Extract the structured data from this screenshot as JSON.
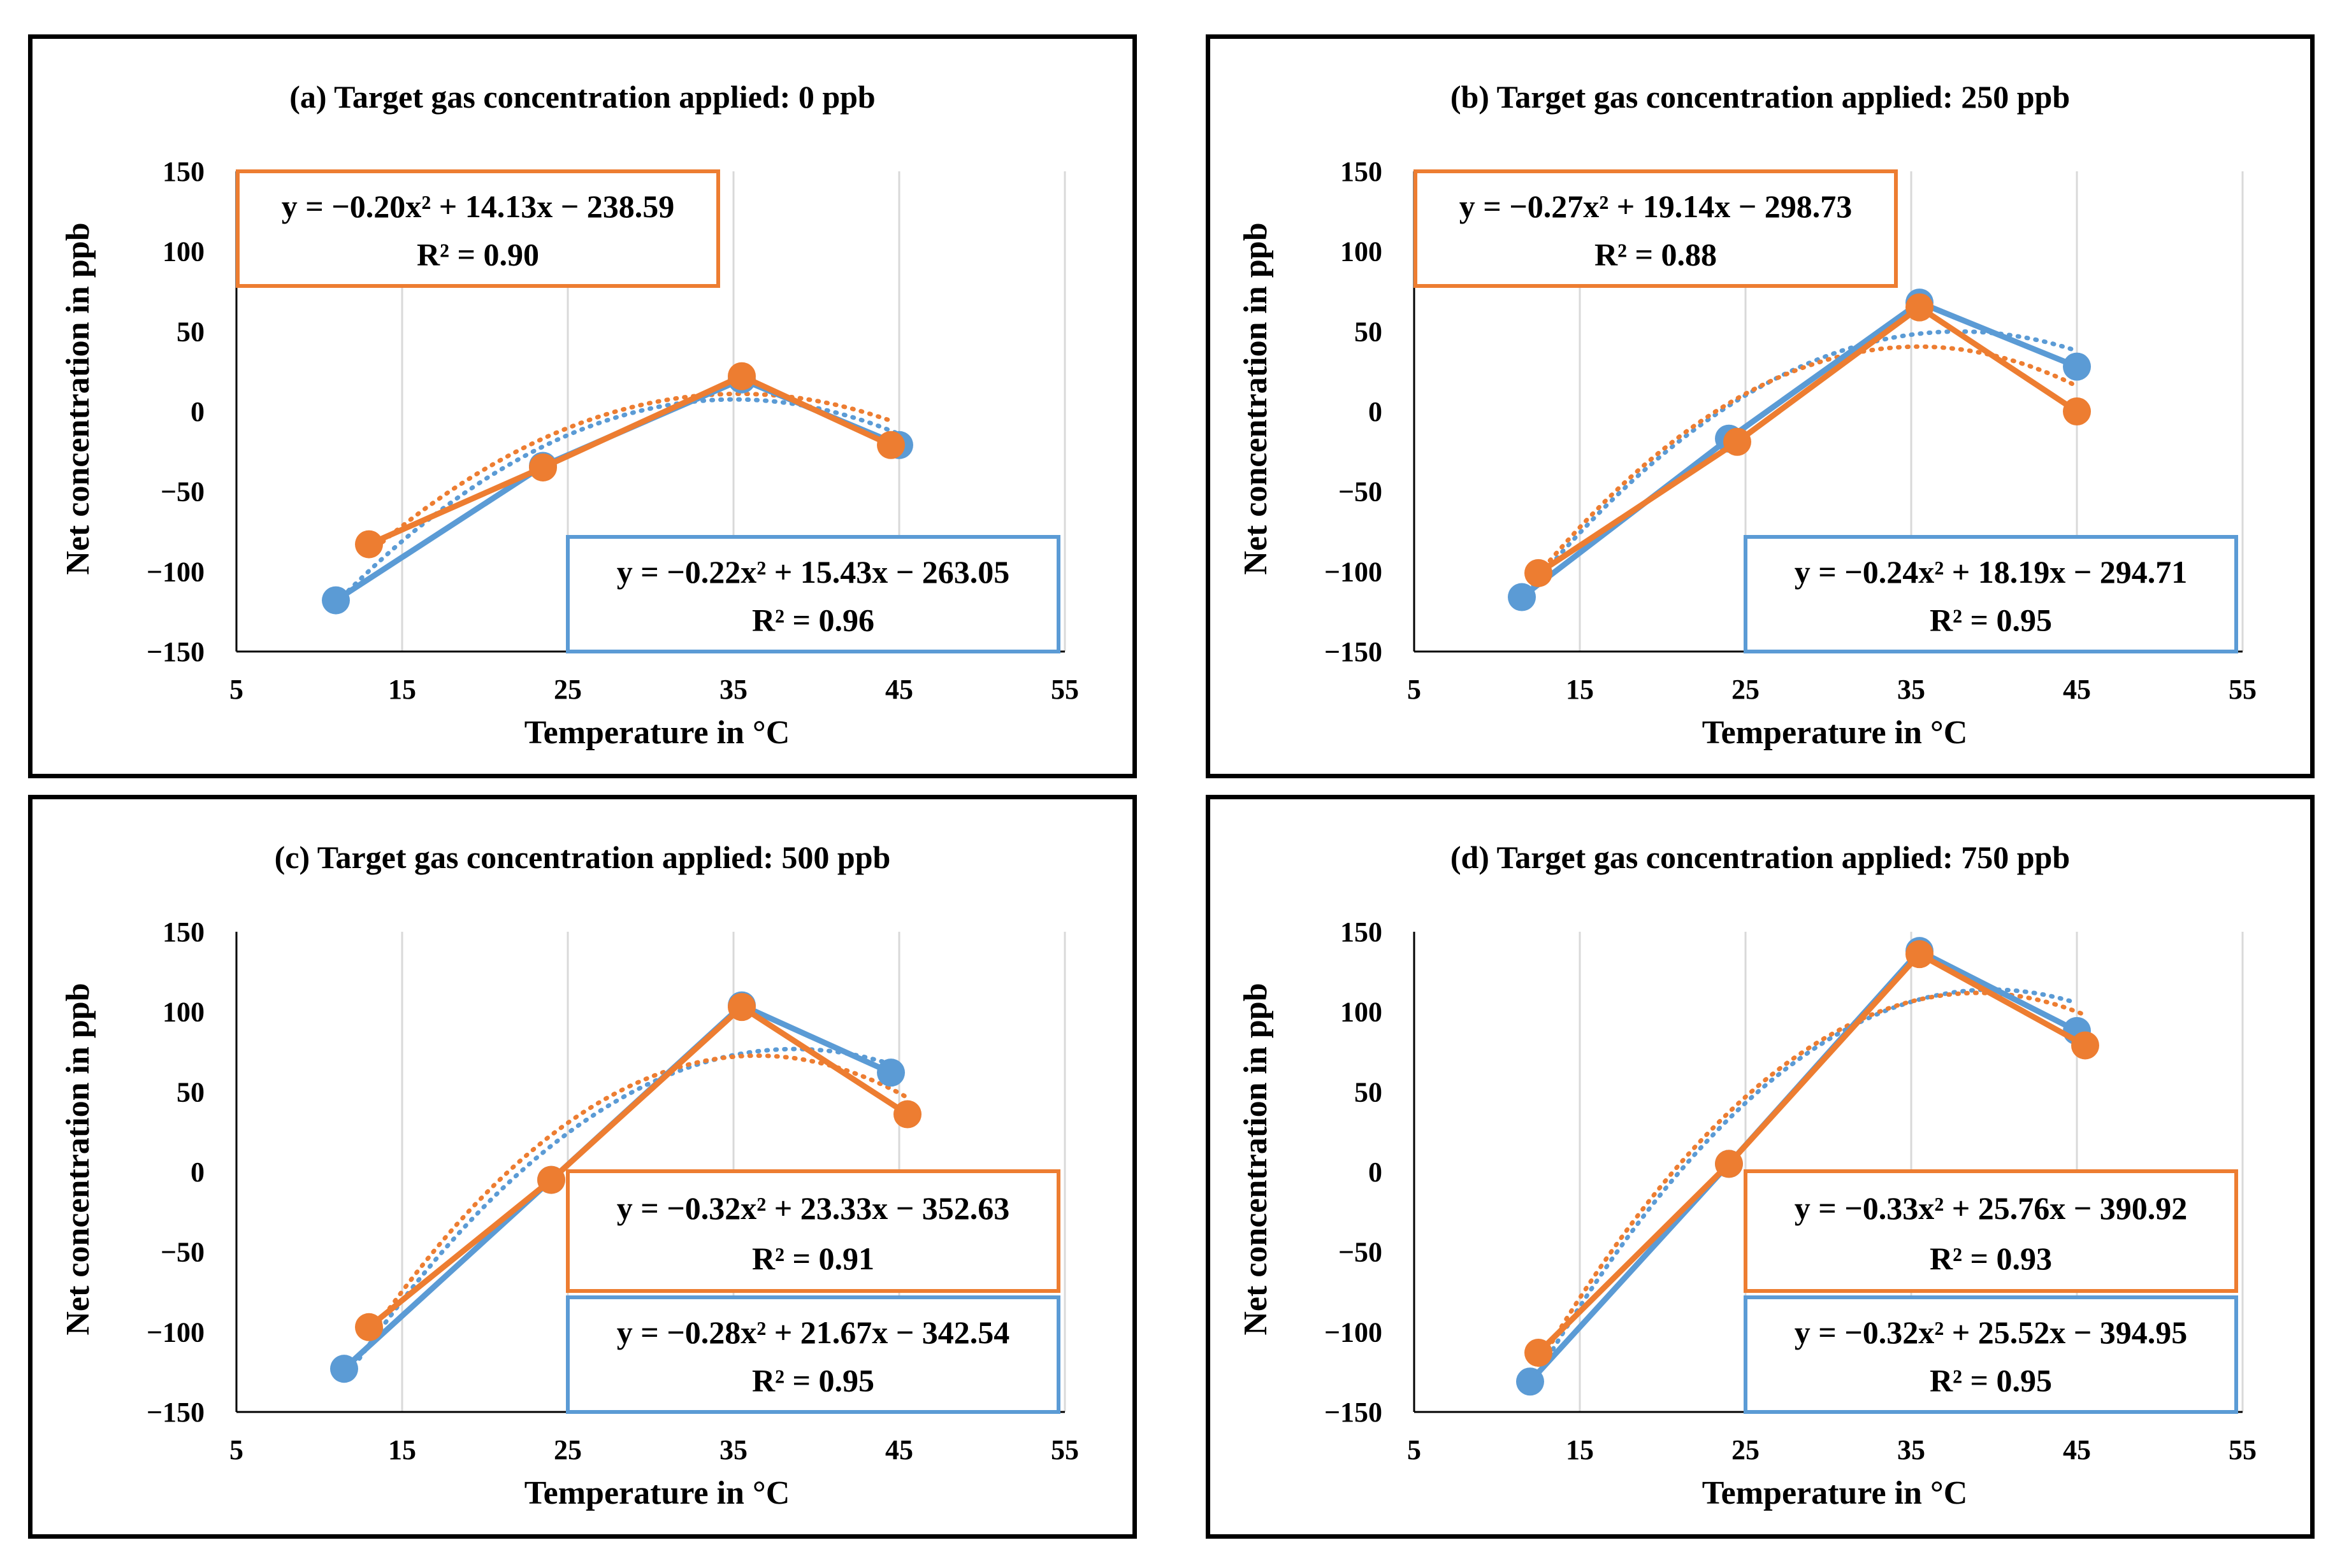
{
  "colors": {
    "blue": "#5b9bd5",
    "orange": "#ed7d31",
    "grid": "#d9d9d9",
    "axis": "#000000"
  },
  "chart_data": [
    {
      "type": "line",
      "title": "(a) Target gas concentration applied: 0 ppb",
      "xlabel": "Temperature in °C",
      "ylabel": "Net concentration in ppb",
      "xlim": [
        5,
        55
      ],
      "ylim": [
        -150,
        150
      ],
      "xticks": [
        5,
        15,
        25,
        35,
        45,
        55
      ],
      "yticks": [
        -150,
        -100,
        -50,
        0,
        50,
        100,
        150
      ],
      "grid": "vertical",
      "series": [
        {
          "name": "blue",
          "color": "#5b9bd5",
          "x": [
            11,
            23.5,
            35.5,
            45
          ],
          "y": [
            -118,
            -34,
            20,
            -21
          ],
          "fit": {
            "a": -0.22,
            "b": 15.43,
            "c": -263.05,
            "equation": "y = −0.22x² + 15.43x − 263.05",
            "r2": "R² = 0.96"
          }
        },
        {
          "name": "orange",
          "color": "#ed7d31",
          "x": [
            13,
            23.5,
            35.5,
            44.5
          ],
          "y": [
            -83,
            -35,
            22,
            -21
          ],
          "fit": {
            "a": -0.2,
            "b": 14.13,
            "c": -238.59,
            "equation": "y = −0.20x² + 14.13x − 238.59",
            "r2": "R² = 0.90"
          }
        }
      ],
      "annotations": [
        {
          "series": "orange",
          "position": "top-left"
        },
        {
          "series": "blue",
          "position": "bottom-right"
        }
      ]
    },
    {
      "type": "line",
      "title": "(b) Target gas concentration applied: 250 ppb",
      "xlabel": "Temperature in °C",
      "ylabel": "Net concentration in ppb",
      "xlim": [
        5,
        55
      ],
      "ylim": [
        -150,
        150
      ],
      "xticks": [
        5,
        15,
        25,
        35,
        45,
        55
      ],
      "yticks": [
        -150,
        -100,
        -50,
        0,
        50,
        100,
        150
      ],
      "grid": "vertical",
      "series": [
        {
          "name": "blue",
          "color": "#5b9bd5",
          "x": [
            11.5,
            24,
            35.5,
            45
          ],
          "y": [
            -116,
            -17,
            68,
            28
          ],
          "fit": {
            "a": -0.24,
            "b": 18.19,
            "c": -294.71,
            "equation": "y = −0.24x² + 18.19x − 294.71",
            "r2": "R² = 0.95"
          }
        },
        {
          "name": "orange",
          "color": "#ed7d31",
          "x": [
            12.5,
            24.5,
            35.5,
            45
          ],
          "y": [
            -101,
            -19,
            65,
            0
          ],
          "fit": {
            "a": -0.27,
            "b": 19.14,
            "c": -298.73,
            "equation": "y = −0.27x² + 19.14x − 298.73",
            "r2": "R² = 0.88"
          }
        }
      ],
      "annotations": [
        {
          "series": "orange",
          "position": "top-left"
        },
        {
          "series": "blue",
          "position": "bottom-right"
        }
      ]
    },
    {
      "type": "line",
      "title": "(c) Target gas concentration applied: 500 ppb",
      "xlabel": "Temperature in °C",
      "ylabel": "Net concentration in ppb",
      "xlim": [
        5,
        55
      ],
      "ylim": [
        -150,
        150
      ],
      "xticks": [
        5,
        15,
        25,
        35,
        45,
        55
      ],
      "yticks": [
        -150,
        -100,
        -50,
        0,
        50,
        100,
        150
      ],
      "grid": "vertical",
      "series": [
        {
          "name": "blue",
          "color": "#5b9bd5",
          "x": [
            11.5,
            24,
            35.5,
            44.5
          ],
          "y": [
            -123,
            -5,
            104,
            62
          ],
          "fit": {
            "a": -0.28,
            "b": 21.67,
            "c": -342.54,
            "equation": "y = −0.28x² + 21.67x − 342.54",
            "r2": "R² = 0.95"
          }
        },
        {
          "name": "orange",
          "color": "#ed7d31",
          "x": [
            13,
            24,
            35.5,
            45.5
          ],
          "y": [
            -97,
            -5,
            103,
            36
          ],
          "fit": {
            "a": -0.32,
            "b": 23.33,
            "c": -352.63,
            "equation": "y = −0.32x² + 23.33x − 352.63",
            "r2": "R² = 0.91"
          }
        }
      ],
      "annotations": [
        {
          "series": "orange",
          "position": "lower-right"
        },
        {
          "series": "blue",
          "position": "bottom-right"
        }
      ]
    },
    {
      "type": "line",
      "title": "(d) Target gas concentration applied: 750 ppb",
      "xlabel": "Temperature in °C",
      "ylabel": "Net concentration in ppb",
      "xlim": [
        5,
        55
      ],
      "ylim": [
        -150,
        150
      ],
      "xticks": [
        5,
        15,
        25,
        35,
        45,
        55
      ],
      "yticks": [
        -150,
        -100,
        -50,
        0,
        50,
        100,
        150
      ],
      "grid": "vertical",
      "series": [
        {
          "name": "blue",
          "color": "#5b9bd5",
          "x": [
            12,
            24,
            35.5,
            45
          ],
          "y": [
            -131,
            5,
            138,
            88
          ],
          "fit": {
            "a": -0.32,
            "b": 25.52,
            "c": -394.95,
            "equation": "y = −0.32x² + 25.52x − 394.95",
            "r2": "R² = 0.95"
          }
        },
        {
          "name": "orange",
          "color": "#ed7d31",
          "x": [
            12.5,
            24,
            35.5,
            45.5
          ],
          "y": [
            -113,
            5,
            136,
            79
          ],
          "fit": {
            "a": -0.33,
            "b": 25.76,
            "c": -390.92,
            "equation": "y = −0.33x² + 25.76x − 390.92",
            "r2": "R² = 0.93"
          }
        }
      ],
      "annotations": [
        {
          "series": "orange",
          "position": "lower-right"
        },
        {
          "series": "blue",
          "position": "bottom-right"
        }
      ]
    }
  ]
}
